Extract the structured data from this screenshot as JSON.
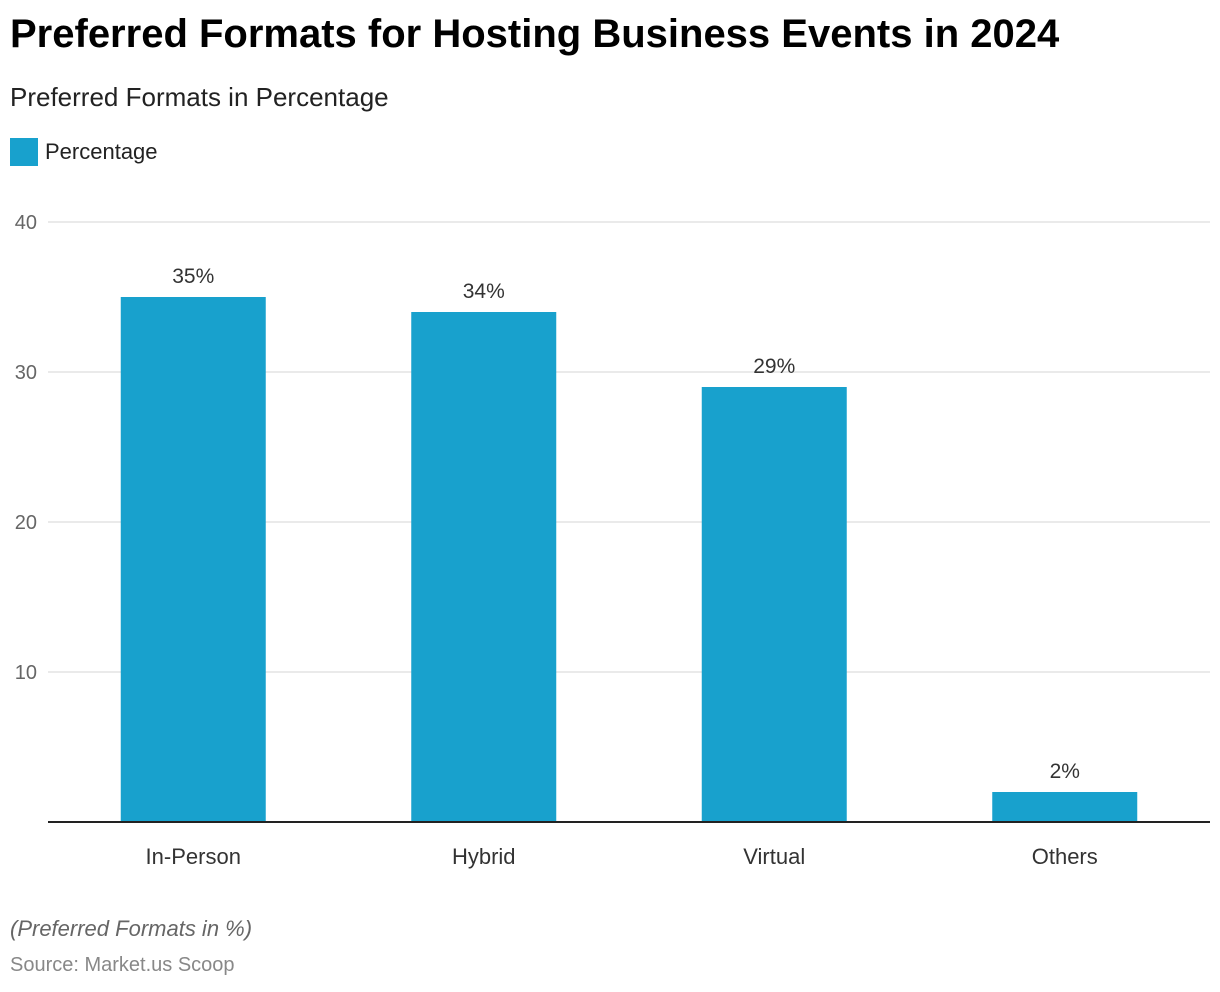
{
  "chart_data": {
    "type": "bar",
    "title": "Preferred Formats for Hosting Business Events in 2024",
    "subtitle": "Preferred Formats in Percentage",
    "legend": [
      "Percentage"
    ],
    "categories": [
      "In-Person",
      "Hybrid",
      "Virtual",
      "Others"
    ],
    "values": [
      35,
      34,
      29,
      2
    ],
    "data_labels": [
      "35%",
      "34%",
      "29%",
      "2%"
    ],
    "yticks": [
      10,
      20,
      30,
      40
    ],
    "ylim": [
      0,
      40
    ],
    "xlabel": "",
    "ylabel": "",
    "grid": true,
    "legend_position": "top-left",
    "color": "#18a1cd"
  },
  "footer": {
    "note": "(Preferred Formats in %)",
    "source": "Source: Market.us Scoop"
  }
}
